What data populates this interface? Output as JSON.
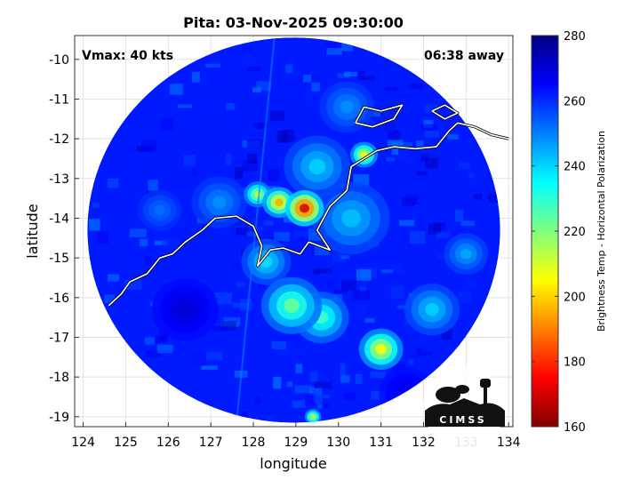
{
  "chart_data": {
    "type": "heatmap",
    "title": "Pita: 03-Nov-2025 09:30:00",
    "xlabel": "longitude",
    "ylabel": "latitude",
    "xlim": [
      123.8,
      134.1
    ],
    "ylim": [
      -19.25,
      -9.4
    ],
    "xticks": [
      124,
      125,
      126,
      127,
      128,
      129,
      130,
      131,
      132,
      133,
      134
    ],
    "yticks": [
      -10,
      -11,
      -12,
      -13,
      -14,
      -15,
      -16,
      -17,
      -18,
      -19
    ],
    "grid": true,
    "annotations": {
      "vmax": "Vmax: 40 kts",
      "away": "06:38 away"
    },
    "colorbar": {
      "label": "Brightness Temp - Horizontal Polarization",
      "min": 160,
      "max": 280,
      "ticks": [
        160,
        180,
        200,
        220,
        240,
        260,
        280
      ],
      "colormap": "jet"
    },
    "swath": {
      "center": [
        128.95,
        -14.3
      ],
      "radius_deg": 4.85,
      "background_value": 262
    },
    "features": [
      {
        "lon": 129.2,
        "lat": -13.75,
        "value": 170,
        "spread": 0.35
      },
      {
        "lon": 128.6,
        "lat": -13.6,
        "value": 195,
        "spread": 0.3
      },
      {
        "lon": 128.1,
        "lat": -13.4,
        "value": 212,
        "spread": 0.25
      },
      {
        "lon": 130.6,
        "lat": -12.4,
        "value": 205,
        "spread": 0.25
      },
      {
        "lon": 131.0,
        "lat": -17.3,
        "value": 205,
        "spread": 0.4
      },
      {
        "lon": 128.9,
        "lat": -16.2,
        "value": 222,
        "spread": 0.55
      },
      {
        "lon": 129.6,
        "lat": -16.5,
        "value": 228,
        "spread": 0.5
      },
      {
        "lon": 128.3,
        "lat": -15.1,
        "value": 238,
        "spread": 0.45
      },
      {
        "lon": 130.3,
        "lat": -14.0,
        "value": 242,
        "spread": 0.7
      },
      {
        "lon": 129.5,
        "lat": -12.7,
        "value": 240,
        "spread": 0.6
      },
      {
        "lon": 132.2,
        "lat": -16.3,
        "value": 240,
        "spread": 0.5
      },
      {
        "lon": 127.2,
        "lat": -13.6,
        "value": 248,
        "spread": 0.5
      },
      {
        "lon": 133.0,
        "lat": -14.9,
        "value": 245,
        "spread": 0.4
      },
      {
        "lon": 129.4,
        "lat": -19.0,
        "value": 210,
        "spread": 0.15
      },
      {
        "lon": 130.2,
        "lat": -11.2,
        "value": 248,
        "spread": 0.5
      },
      {
        "lon": 125.8,
        "lat": -13.8,
        "value": 252,
        "spread": 0.4
      },
      {
        "lon": 126.4,
        "lat": -16.3,
        "value": 270,
        "spread": 0.6
      },
      {
        "lon": 131.6,
        "lat": -18.4,
        "value": 268,
        "spread": 0.5
      }
    ],
    "coastline": [
      [
        [
          124.6,
          -16.2
        ],
        [
          124.9,
          -15.9
        ],
        [
          125.1,
          -15.6
        ],
        [
          125.5,
          -15.4
        ],
        [
          125.8,
          -15.0
        ],
        [
          126.1,
          -14.9
        ],
        [
          126.4,
          -14.6
        ],
        [
          126.8,
          -14.3
        ],
        [
          127.1,
          -14.0
        ],
        [
          127.6,
          -13.95
        ],
        [
          128.0,
          -14.2
        ],
        [
          128.2,
          -14.7
        ],
        [
          128.1,
          -15.2
        ],
        [
          128.4,
          -14.8
        ],
        [
          128.7,
          -14.75
        ],
        [
          129.1,
          -14.9
        ],
        [
          129.3,
          -14.6
        ],
        [
          129.8,
          -14.8
        ],
        [
          129.5,
          -14.3
        ],
        [
          129.8,
          -13.7
        ],
        [
          130.2,
          -13.3
        ],
        [
          130.3,
          -12.7
        ],
        [
          130.6,
          -12.5
        ],
        [
          130.9,
          -12.3
        ],
        [
          131.3,
          -12.2
        ],
        [
          131.8,
          -12.25
        ],
        [
          132.3,
          -12.2
        ],
        [
          132.6,
          -11.8
        ],
        [
          132.8,
          -11.6
        ],
        [
          133.2,
          -11.7
        ],
        [
          133.6,
          -11.9
        ],
        [
          134.0,
          -12.0
        ]
      ],
      [
        [
          130.4,
          -11.6
        ],
        [
          130.6,
          -11.2
        ],
        [
          131.0,
          -11.3
        ],
        [
          131.5,
          -11.15
        ],
        [
          131.3,
          -11.5
        ],
        [
          130.8,
          -11.7
        ],
        [
          130.4,
          -11.6
        ]
      ],
      [
        [
          132.2,
          -11.3
        ],
        [
          132.5,
          -11.15
        ],
        [
          132.8,
          -11.35
        ],
        [
          132.5,
          -11.5
        ],
        [
          132.2,
          -11.3
        ]
      ]
    ]
  }
}
